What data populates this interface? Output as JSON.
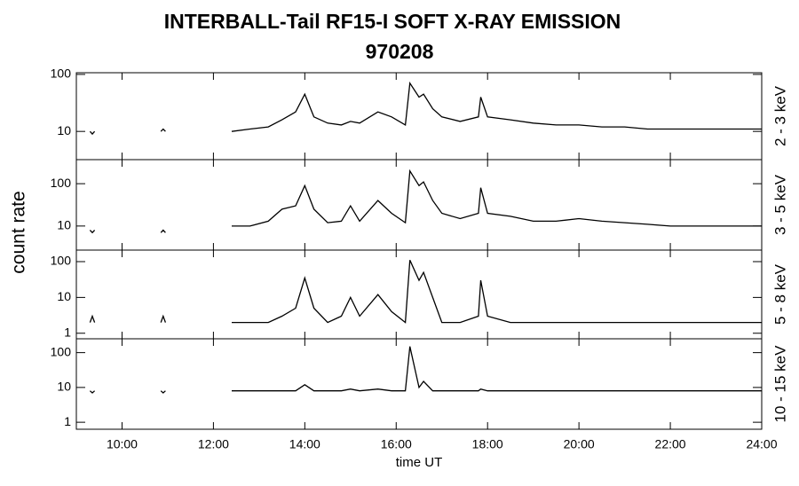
{
  "title": "INTERBALL-Tail RF15-I SOFT X-RAY EMISSION",
  "subtitle": "970208",
  "y_label": "count rate",
  "x_label": "time UT",
  "chart_data": [
    {
      "type": "line",
      "label": "2 - 3 keV",
      "color": "#000000",
      "log_y": true,
      "x": [
        9.3,
        9.35,
        9.4,
        10,
        10.85,
        10.9,
        10.95,
        11.5,
        12.4,
        12.8,
        13.2,
        13.5,
        13.8,
        14.0,
        14.2,
        14.5,
        14.8,
        15.0,
        15.2,
        15.6,
        15.9,
        16.2,
        16.3,
        16.5,
        16.6,
        16.8,
        17.0,
        17.4,
        17.8,
        17.85,
        18.0,
        18.5,
        19.0,
        19.5,
        20.0,
        20.5,
        21.0,
        21.5,
        22.0,
        22.5,
        23.0,
        23.5,
        24.0
      ],
      "values": [
        10,
        9,
        10,
        null,
        10,
        11,
        10,
        null,
        10,
        11,
        12,
        16,
        22,
        45,
        18,
        14,
        13,
        15,
        14,
        22,
        18,
        13,
        70,
        40,
        45,
        25,
        18,
        15,
        18,
        40,
        18,
        16,
        14,
        13,
        13,
        12,
        12,
        11,
        11,
        11,
        11,
        11,
        11
      ],
      "xlim": [
        9,
        24
      ],
      "ylim": [
        3.2,
        107
      ],
      "yticks": [
        10,
        100
      ]
    },
    {
      "type": "line",
      "label": "3 - 5 keV",
      "color": "#000000",
      "log_y": true,
      "x": [
        9.3,
        9.35,
        9.4,
        10,
        10.85,
        10.9,
        10.95,
        11.5,
        12.4,
        12.8,
        13.2,
        13.5,
        13.8,
        14.0,
        14.2,
        14.5,
        14.8,
        15.0,
        15.2,
        15.6,
        15.9,
        16.2,
        16.3,
        16.5,
        16.6,
        16.8,
        17.0,
        17.4,
        17.8,
        17.85,
        18.0,
        18.5,
        19.0,
        19.5,
        20.0,
        20.5,
        21.0,
        21.5,
        22.0,
        22.5,
        23.0,
        23.5,
        24.0
      ],
      "values": [
        8,
        7,
        8,
        null,
        7,
        8,
        7,
        null,
        10,
        10,
        13,
        25,
        30,
        90,
        25,
        12,
        13,
        30,
        13,
        40,
        20,
        12,
        200,
        90,
        110,
        40,
        20,
        15,
        20,
        80,
        20,
        17,
        13,
        13,
        15,
        13,
        12,
        11,
        10,
        10,
        10,
        10,
        10
      ],
      "xlim": [
        9,
        24
      ],
      "ylim": [
        2.7,
        370
      ],
      "yticks": [
        10,
        100
      ]
    },
    {
      "type": "line",
      "label": "5 - 8 keV",
      "color": "#000000",
      "log_y": true,
      "x": [
        9.3,
        9.35,
        9.4,
        10,
        10.85,
        10.9,
        10.95,
        11.5,
        12.4,
        12.8,
        13.2,
        13.5,
        13.8,
        14.0,
        14.2,
        14.5,
        14.8,
        15.0,
        15.2,
        15.6,
        15.9,
        16.2,
        16.3,
        16.5,
        16.6,
        16.8,
        17.0,
        17.4,
        17.8,
        17.85,
        18.0,
        18.5,
        19.0,
        19.5,
        20.0,
        20.5,
        21.0,
        21.5,
        22.0,
        22.5,
        23.0,
        23.5,
        24.0
      ],
      "values": [
        2,
        3,
        2,
        null,
        2,
        3,
        2,
        null,
        2,
        2,
        2,
        3,
        5,
        35,
        5,
        2,
        3,
        10,
        3,
        12,
        4,
        2,
        110,
        30,
        50,
        10,
        2,
        2,
        3,
        30,
        3,
        2,
        2,
        2,
        2,
        2,
        2,
        2,
        2,
        2,
        2,
        2,
        2
      ],
      "xlim": [
        9,
        24
      ],
      "ylim": [
        0.7,
        210
      ],
      "yticks": [
        1,
        10,
        100
      ]
    },
    {
      "type": "line",
      "label": "10 - 15 keV",
      "color": "#000000",
      "log_y": true,
      "x": [
        9.3,
        9.35,
        9.4,
        10,
        10.85,
        10.9,
        10.95,
        11.5,
        12.4,
        12.8,
        13.2,
        13.5,
        13.8,
        14.0,
        14.2,
        14.5,
        14.8,
        15.0,
        15.2,
        15.6,
        15.9,
        16.2,
        16.3,
        16.5,
        16.6,
        16.8,
        17.0,
        17.4,
        17.8,
        17.85,
        18.0,
        18.5,
        19.0,
        19.5,
        20.0,
        20.5,
        21.0,
        21.5,
        22.0,
        22.5,
        23.0,
        23.5,
        24.0
      ],
      "values": [
        8,
        7,
        8,
        null,
        8,
        7,
        8,
        null,
        8,
        8,
        8,
        8,
        8,
        12,
        8,
        8,
        8,
        9,
        8,
        9,
        8,
        8,
        150,
        10,
        15,
        8,
        8,
        8,
        8,
        9,
        8,
        8,
        8,
        8,
        8,
        8,
        8,
        8,
        8,
        8,
        8,
        8,
        8
      ],
      "xlim": [
        9,
        24
      ],
      "ylim": [
        0.63,
        250
      ],
      "yticks": [
        1,
        10,
        100
      ],
      "xticks": [
        {
          "value": 10,
          "label": "10:00"
        },
        {
          "value": 12,
          "label": "12:00"
        },
        {
          "value": 14,
          "label": "14:00"
        },
        {
          "value": 16,
          "label": "16:00"
        },
        {
          "value": 18,
          "label": "18:00"
        },
        {
          "value": 20,
          "label": "20:00"
        },
        {
          "value": 22,
          "label": "22:00"
        },
        {
          "value": 24,
          "label": "24:00"
        }
      ]
    }
  ]
}
